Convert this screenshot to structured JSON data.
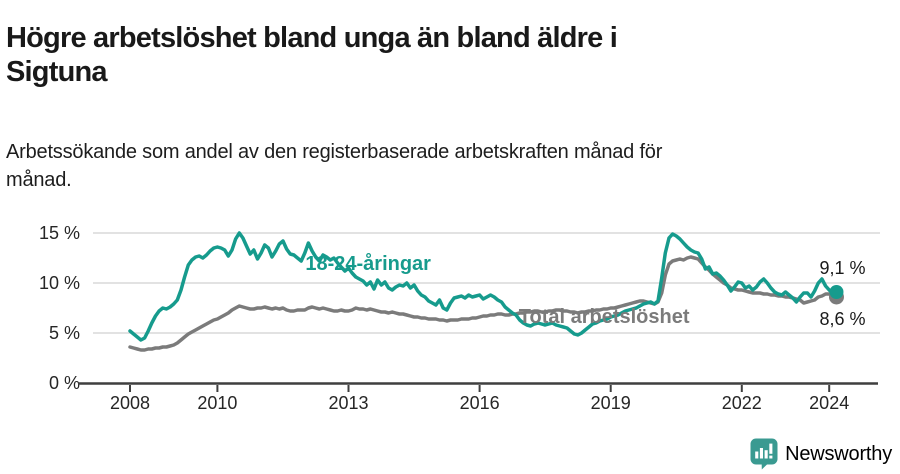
{
  "page": {
    "title_line1": "Högre arbetslöshet bland unga än bland äldre i",
    "title_line2": "Sigtuna",
    "subtitle_line1": "Arbetssökande som andel av den registerbaserade arbetskraften månad för",
    "subtitle_line2": "månad."
  },
  "branding": {
    "logo_text": "Newsworthy",
    "logo_color": "#3a9a91"
  },
  "chart_data": {
    "type": "line",
    "title": "Högre arbetslöshet bland unga än bland äldre i Sigtuna",
    "subtitle": "Arbetssökande som andel av den registerbaserade arbetskraften månad för månad.",
    "x_unit": "month",
    "x_start": 2008.0,
    "x_step_months": 1,
    "xlim": [
      2006.8,
      2025.1
    ],
    "ylim": [
      0,
      15.5
    ],
    "grid": "horizontal",
    "grid_color": "#d9d9d9",
    "axis_color": "#3f3f3f",
    "tick_label_color": "#262626",
    "end_label_color": "#1a1a1a",
    "xticks": [
      2008,
      2010,
      2013,
      2016,
      2019,
      2022,
      2024
    ],
    "xtick_labels": [
      "2008",
      "2010",
      "2013",
      "2016",
      "2019",
      "2022",
      "2024"
    ],
    "yticks": [
      0,
      5,
      10,
      15
    ],
    "ytick_labels": [
      "0 %",
      "5 %",
      "10 %",
      "15 %"
    ],
    "series": [
      {
        "name": "18-24-åringar",
        "color": "#169b8d",
        "end_label": "9,1 %",
        "end_value": 9.1,
        "label_anchor": {
          "year": 2013.45,
          "value": 12.0
        },
        "end_label_dy": -18,
        "values": [
          5.2,
          4.9,
          4.6,
          4.3,
          4.5,
          5.2,
          6.0,
          6.7,
          7.2,
          7.5,
          7.4,
          7.6,
          7.9,
          8.3,
          9.3,
          10.6,
          11.8,
          12.3,
          12.6,
          12.7,
          12.5,
          12.8,
          13.2,
          13.5,
          13.6,
          13.5,
          13.3,
          12.7,
          13.3,
          14.4,
          15.0,
          14.5,
          13.7,
          12.9,
          13.3,
          12.4,
          13.0,
          13.8,
          13.5,
          12.6,
          13.2,
          13.9,
          14.2,
          13.4,
          12.9,
          12.8,
          12.5,
          12.2,
          13.0,
          14.0,
          13.2,
          12.6,
          12.2,
          12.8,
          12.6,
          12.3,
          12.5,
          12.0,
          11.6,
          11.2,
          11.5,
          11.0,
          10.6,
          10.4,
          10.2,
          9.8,
          10.1,
          9.4,
          10.3,
          9.8,
          10.1,
          9.5,
          9.3,
          9.6,
          9.8,
          9.7,
          10.0,
          9.5,
          9.8,
          9.2,
          8.8,
          8.6,
          8.2,
          8.0,
          7.8,
          8.3,
          7.5,
          7.3,
          8.0,
          8.5,
          8.6,
          8.7,
          8.5,
          8.8,
          8.6,
          8.7,
          8.8,
          8.4,
          8.6,
          8.8,
          8.6,
          8.3,
          8.1,
          7.6,
          7.3,
          7.0,
          6.8,
          6.3,
          6.0,
          5.8,
          5.7,
          5.9,
          6.0,
          5.9,
          5.8,
          5.9,
          6.0,
          5.8,
          5.7,
          5.6,
          5.5,
          5.2,
          4.9,
          4.8,
          5.0,
          5.3,
          5.6,
          5.9,
          6.0,
          6.2,
          6.3,
          6.4,
          6.6,
          6.7,
          6.8,
          7.0,
          7.2,
          7.3,
          7.4,
          7.5,
          7.7,
          7.9,
          8.0,
          8.1,
          7.9,
          8.2,
          10.5,
          13.0,
          14.5,
          14.9,
          14.7,
          14.4,
          14.0,
          13.6,
          13.3,
          13.1,
          13.0,
          12.4,
          11.4,
          11.6,
          10.9,
          11.0,
          10.7,
          10.3,
          9.8,
          9.2,
          9.6,
          10.1,
          10.0,
          9.5,
          9.7,
          9.3,
          9.6,
          10.1,
          10.4,
          10.0,
          9.5,
          9.1,
          8.9,
          8.8,
          9.1,
          8.8,
          8.5,
          8.1,
          8.6,
          9.0,
          9.0,
          8.6,
          9.2,
          10.0,
          10.4,
          9.7,
          9.3,
          9.0,
          9.1
        ]
      },
      {
        "name": "Total arbetslöshet",
        "color": "#7b7b7b",
        "end_label": "8,6 %",
        "end_value": 8.6,
        "label_anchor": {
          "year": 2018.85,
          "value": 6.7
        },
        "end_label_dy": 28,
        "values": [
          3.6,
          3.5,
          3.4,
          3.3,
          3.3,
          3.4,
          3.4,
          3.5,
          3.5,
          3.6,
          3.6,
          3.7,
          3.8,
          4.0,
          4.3,
          4.6,
          4.9,
          5.1,
          5.3,
          5.5,
          5.7,
          5.9,
          6.1,
          6.3,
          6.4,
          6.6,
          6.8,
          7.0,
          7.3,
          7.5,
          7.7,
          7.6,
          7.5,
          7.4,
          7.4,
          7.5,
          7.5,
          7.6,
          7.5,
          7.4,
          7.5,
          7.4,
          7.5,
          7.3,
          7.2,
          7.2,
          7.3,
          7.3,
          7.3,
          7.5,
          7.6,
          7.5,
          7.4,
          7.5,
          7.4,
          7.3,
          7.2,
          7.2,
          7.3,
          7.2,
          7.2,
          7.3,
          7.5,
          7.4,
          7.4,
          7.3,
          7.4,
          7.3,
          7.2,
          7.1,
          7.1,
          7.0,
          7.1,
          7.0,
          6.9,
          6.9,
          6.8,
          6.7,
          6.6,
          6.6,
          6.5,
          6.5,
          6.4,
          6.4,
          6.4,
          6.3,
          6.3,
          6.2,
          6.3,
          6.3,
          6.3,
          6.4,
          6.4,
          6.4,
          6.5,
          6.5,
          6.6,
          6.7,
          6.7,
          6.8,
          6.8,
          6.9,
          6.9,
          6.8,
          6.8,
          6.9,
          6.9,
          7.0,
          7.0,
          7.1,
          7.1,
          7.2,
          7.2,
          7.1,
          7.1,
          7.2,
          7.2,
          7.3,
          7.3,
          7.2,
          7.2,
          7.1,
          7.1,
          7.0,
          7.1,
          7.1,
          7.2,
          7.2,
          7.3,
          7.3,
          7.4,
          7.4,
          7.5,
          7.5,
          7.6,
          7.7,
          7.8,
          7.9,
          8.0,
          8.1,
          8.2,
          8.2,
          8.1,
          8.0,
          7.9,
          8.1,
          9.0,
          10.8,
          11.9,
          12.2,
          12.3,
          12.4,
          12.3,
          12.5,
          12.6,
          12.5,
          12.4,
          12.0,
          11.6,
          11.3,
          10.9,
          10.6,
          10.3,
          10.0,
          9.8,
          9.5,
          9.4,
          9.3,
          9.3,
          9.2,
          9.1,
          9.0,
          9.0,
          9.0,
          8.9,
          8.9,
          8.8,
          8.8,
          8.7,
          8.7,
          8.6,
          8.6,
          8.5,
          8.4,
          8.3,
          8.0,
          8.1,
          8.2,
          8.3,
          8.6,
          8.7,
          8.9,
          8.9,
          8.8,
          8.6
        ]
      }
    ]
  }
}
